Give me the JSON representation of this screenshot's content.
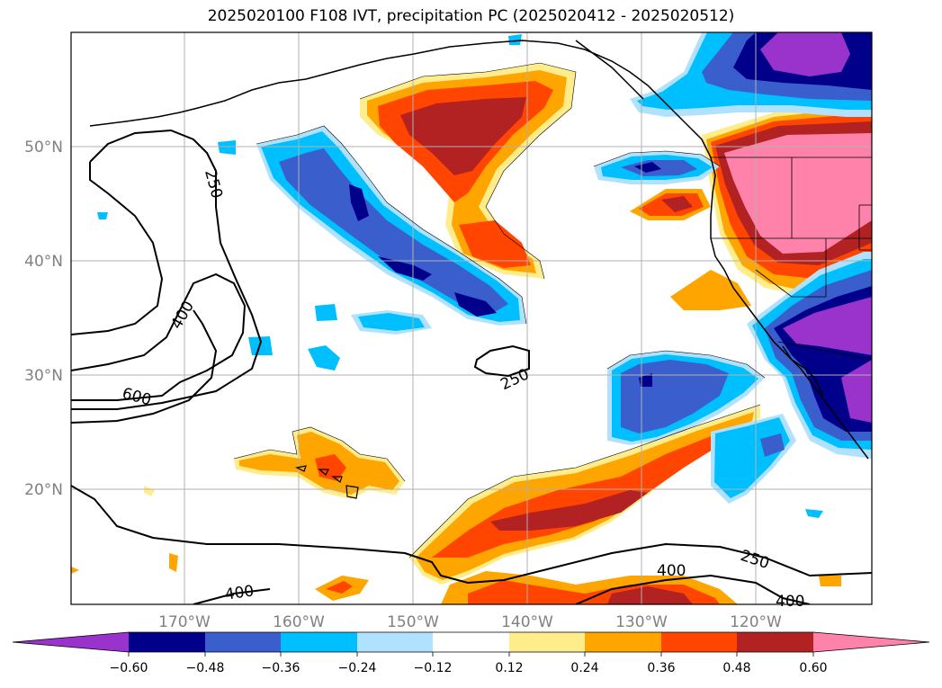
{
  "title": "2025020100 F108 IVT, precipitation PC (2025020412 - 2025020512)",
  "map": {
    "lat_labels": [
      "50°N",
      "40°N",
      "30°N",
      "20°N"
    ],
    "lon_labels": [
      "170°W",
      "160°W",
      "150°W",
      "140°W",
      "130°W",
      "120°W"
    ],
    "contour_labels": [
      "250",
      "400",
      "600",
      "250",
      "400",
      "250",
      "400",
      "400"
    ]
  },
  "colorbar": {
    "ticks": [
      "−0.60",
      "−0.48",
      "−0.36",
      "−0.24",
      "−0.12",
      "0.12",
      "0.24",
      "0.36",
      "0.48",
      "0.60"
    ],
    "colors": [
      "#9933cc",
      "#00008b",
      "#3a5fcd",
      "#00bfff",
      "#b0e2ff",
      "#ffffff",
      "#ffec8b",
      "#ffa500",
      "#ff4500",
      "#b22222",
      "#ff82ab"
    ]
  }
}
